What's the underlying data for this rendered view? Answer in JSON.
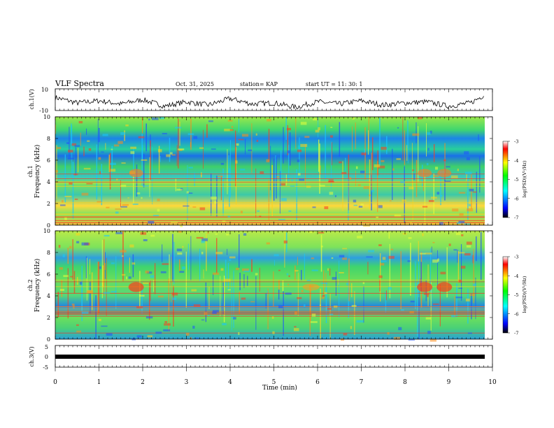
{
  "header": {
    "title": "VLF Spectra",
    "date": "Oct. 31, 2025",
    "station": "station= KAP",
    "start": "start  UT  =   11: 30: 1"
  },
  "colorbar": {
    "label": "log(PSD)(V²/Hz)",
    "ticks": [
      "-3",
      "-4",
      "-5",
      "-6",
      "-7"
    ],
    "colors": [
      "#ffffff",
      "#ff0000",
      "#ffff00",
      "#00ff00",
      "#00ffff",
      "#0000ff",
      "#000000"
    ]
  },
  "chart_data": [
    {
      "type": "line",
      "name": "ch1-waveform",
      "ylabel": "ch.1(V)",
      "ylim": [
        -10,
        10
      ],
      "yticks": [
        "10",
        "-10"
      ],
      "x": [
        0,
        0.5,
        1,
        1.5,
        2,
        2.5,
        3,
        3.5,
        4,
        4.5,
        5,
        5.5,
        6,
        6.5,
        7,
        7.5,
        8,
        8.5,
        9,
        9.5,
        9.8
      ],
      "y": [
        2,
        -3,
        -1,
        -4,
        0,
        -6,
        -2,
        -5,
        1,
        -4,
        -3,
        -7,
        -2,
        -4,
        -1,
        -5,
        -3,
        -2,
        -6,
        -3,
        4
      ]
    },
    {
      "type": "heatmap",
      "name": "ch1-spectrogram",
      "ylabel": "ch.1",
      "ylabel2": "Frequency  (kHz)",
      "xlim": [
        0,
        10
      ],
      "ylim": [
        0,
        10
      ],
      "yticks": [
        "0",
        "2",
        "4",
        "6",
        "8",
        "10"
      ],
      "clim": [
        -7,
        -3
      ],
      "freq_bands_khz": [
        0,
        1,
        2,
        3,
        4,
        5,
        6,
        7,
        8,
        9,
        10
      ],
      "log_psd_levels": [
        -3.8,
        -4.4,
        -4.6,
        -5.0,
        -5.3,
        -5.0,
        -5.7,
        -5.4,
        -5.0,
        -5.1
      ]
    },
    {
      "type": "heatmap",
      "name": "ch2-spectrogram",
      "ylabel": "ch.2",
      "ylabel2": "Frequency  (kHz)",
      "xlim": [
        0,
        10
      ],
      "ylim": [
        0,
        10
      ],
      "yticks": [
        "0",
        "2",
        "4",
        "6",
        "8",
        "10"
      ],
      "clim": [
        -7,
        -3
      ],
      "freq_bands_khz": [
        0,
        1,
        2,
        3,
        4,
        5,
        6,
        7,
        8,
        9,
        10
      ],
      "log_psd_levels": [
        -4.0,
        -4.7,
        -5.1,
        -5.5,
        -5.0,
        -5.1,
        -5.8,
        -5.0,
        -4.9,
        -4.7
      ]
    },
    {
      "type": "line",
      "name": "ch3-waveform",
      "ylabel": "ch.3(V)",
      "ylim": [
        -5,
        5
      ],
      "yticks": [
        "5",
        "0",
        "-5"
      ],
      "x": [
        0,
        9.8
      ],
      "y": [
        0,
        0
      ]
    }
  ],
  "xaxis": {
    "label": "Time  (min)",
    "ticks": [
      "0",
      "1",
      "2",
      "3",
      "4",
      "5",
      "6",
      "7",
      "8",
      "9",
      "10"
    ]
  }
}
